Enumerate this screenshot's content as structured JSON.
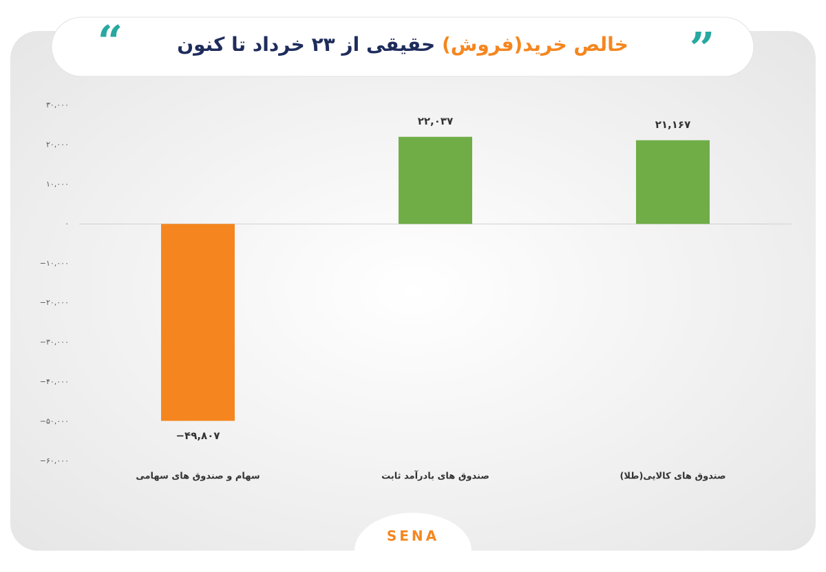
{
  "chart_data": {
    "type": "bar",
    "title_parts": [
      {
        "text": "خالص خرید(فروش)",
        "color": "#f5861f"
      },
      {
        "text": "حقیقی از ۲۳ خرداد تا کنون",
        "color": "#1f2d5c"
      }
    ],
    "categories": [
      "سهام و صندوق های سهامی",
      "صندوق های بادرآمد ثابت",
      "صندوق های کالایی(طلا)"
    ],
    "values": [
      -49807,
      22037,
      21167
    ],
    "value_labels": [
      "−۴۹,۸۰۷",
      "۲۲,۰۳۷",
      "۲۱,۱۶۷"
    ],
    "colors": [
      "#f5861f",
      "#70ad47",
      "#70ad47"
    ],
    "ylim": [
      -60000,
      30000
    ],
    "yticks": [
      {
        "value": 30000,
        "label": "۳۰,۰۰۰"
      },
      {
        "value": 20000,
        "label": "۲۰,۰۰۰"
      },
      {
        "value": 10000,
        "label": "۱۰,۰۰۰"
      },
      {
        "value": 0,
        "label": "۰"
      },
      {
        "value": -10000,
        "label": "−۱۰,۰۰۰"
      },
      {
        "value": -20000,
        "label": "−۲۰,۰۰۰"
      },
      {
        "value": -30000,
        "label": "−۳۰,۰۰۰"
      },
      {
        "value": -40000,
        "label": "−۴۰,۰۰۰"
      },
      {
        "value": -50000,
        "label": "−۵۰,۰۰۰"
      },
      {
        "value": -60000,
        "label": "−۶۰,۰۰۰"
      }
    ],
    "logo": "SENA"
  }
}
